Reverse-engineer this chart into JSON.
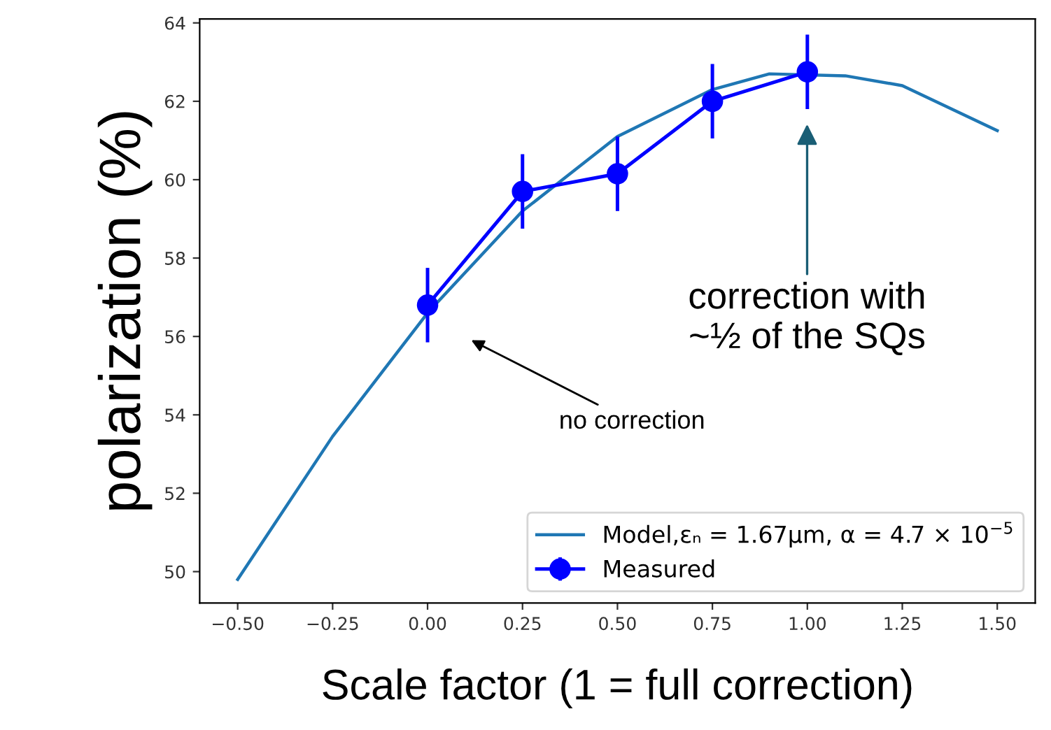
{
  "chart_data": {
    "type": "line",
    "xlabel": "Scale factor (1 = full correction)",
    "ylabel": "polarization (%)",
    "series": [
      {
        "name": "Model,εₙ = 1.67μm, α = 4.7 × 10$^{−5}$",
        "color": "#1f77b4",
        "x": [
          -0.5,
          -0.25,
          0,
          0.25,
          0.5,
          0.75,
          0.9,
          1.1,
          1.25,
          1.5
        ],
        "values": [
          49.8,
          53.45,
          56.6,
          59.2,
          61.1,
          62.3,
          62.7,
          62.65,
          62.4,
          61.25
        ],
        "marker": "none"
      },
      {
        "name": "Measured",
        "color": "#0000ff",
        "x": [
          0,
          0.25,
          0.5,
          0.75,
          1.0
        ],
        "values": [
          56.8,
          59.7,
          60.15,
          62.0,
          62.75
        ],
        "errors": [
          0.95,
          0.95,
          0.95,
          0.95,
          0.95
        ],
        "marker": "circle"
      }
    ],
    "xlim": [
      -0.6,
      1.6
    ],
    "ylim": [
      49.2,
      64.1
    ],
    "xticks": [
      {
        "value": -0.5,
        "label": "−0.50"
      },
      {
        "value": -0.25,
        "label": "−0.25"
      },
      {
        "value": 0,
        "label": "0.00"
      },
      {
        "value": 0.25,
        "label": "0.25"
      },
      {
        "value": 0.5,
        "label": "0.50"
      },
      {
        "value": 0.75,
        "label": "0.75"
      },
      {
        "value": 1.0,
        "label": "1.00"
      },
      {
        "value": 1.25,
        "label": "1.25"
      },
      {
        "value": 1.5,
        "label": "1.50"
      }
    ],
    "yticks": [
      50,
      52,
      54,
      56,
      58,
      60,
      62,
      64
    ],
    "annotations": [
      "no correction",
      "correction with\n~½ of the SQs"
    ],
    "grid": false,
    "legend": "bottom right"
  }
}
